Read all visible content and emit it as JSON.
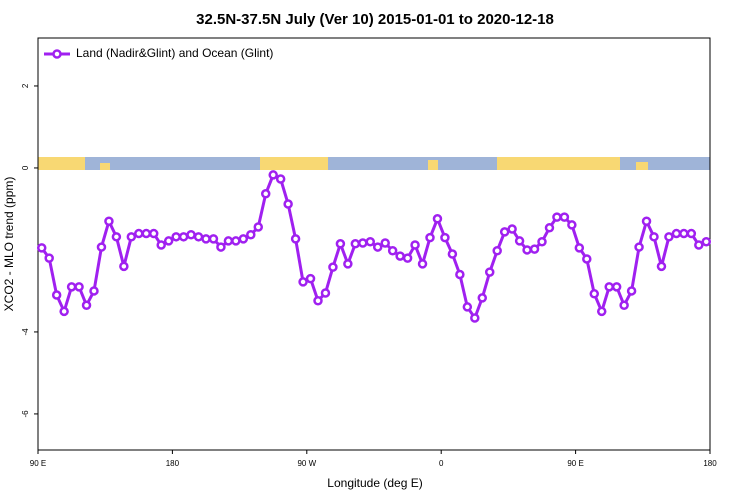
{
  "chart_data": {
    "type": "line",
    "title": "32.5N-37.5N July (Ver 10)   2015-01-01 to 2020-12-18",
    "x_label": "Longitude (deg E)",
    "y_label": "XCO2 - MLO trend (ppm)",
    "legend_position": "top-left",
    "x": [
      92.5,
      97.5,
      102.5,
      107.5,
      112.5,
      117.5,
      122.5,
      127.5,
      132.5,
      137.5,
      142.5,
      147.5,
      152.5,
      157.5,
      162.5,
      167.5,
      172.5,
      177.5,
      182.5,
      187.5,
      192.5,
      197.5,
      202.5,
      207.5,
      212.5,
      217.5,
      222.5,
      227.5,
      232.5,
      237.5,
      242.5,
      247.5,
      252.5,
      257.5,
      262.5,
      267.5,
      272.5,
      277.5,
      282.5,
      287.5,
      292.5,
      297.5,
      302.5,
      307.5,
      312.5,
      317.5,
      322.5,
      327.5,
      332.5,
      337.5,
      342.5,
      347.5,
      352.5,
      357.5,
      362.5,
      367.5,
      372.5,
      377.5,
      382.5,
      387.5,
      392.5,
      397.5,
      402.5,
      407.5,
      412.5,
      417.5,
      422.5,
      427.5,
      432.5,
      437.5,
      442.5,
      447.5,
      452.5,
      457.5,
      462.5,
      467.5,
      472.5,
      477.5,
      482.5,
      487.5,
      492.5,
      497.5,
      502.5,
      507.5,
      512.5,
      517.5,
      522.5,
      527.5,
      532.5,
      537.5
    ],
    "series": [
      {
        "name": "Land (Nadir&Glint) and Ocean (Glint)",
        "color": "#a020f0",
        "values": [
          -1.95,
          -2.2,
          -3.1,
          -3.5,
          -2.9,
          -2.9,
          -3.35,
          -3.0,
          -1.93,
          -1.3,
          -1.68,
          -2.4,
          -1.68,
          -1.6,
          -1.6,
          -1.6,
          -1.88,
          -1.78,
          -1.68,
          -1.68,
          -1.63,
          -1.68,
          -1.73,
          -1.73,
          -1.93,
          -1.78,
          -1.78,
          -1.73,
          -1.63,
          -1.44,
          -0.63,
          -0.17,
          -0.27,
          -0.88,
          -1.73,
          -2.78,
          -2.7,
          -3.24,
          -3.05,
          -2.42,
          -1.85,
          -2.34,
          -1.85,
          -1.83,
          -1.8,
          -1.93,
          -1.83,
          -2.02,
          -2.15,
          -2.2,
          -1.88,
          -2.34,
          -1.7,
          -1.24,
          -1.7,
          -2.1,
          -2.6,
          -3.39,
          -3.66,
          -3.17,
          -2.54,
          -2.02,
          -1.56,
          -1.49,
          -1.78,
          -2.0,
          -1.98,
          -1.8,
          -1.46,
          -1.2,
          -1.2,
          -1.39,
          -1.95,
          -2.22,
          -3.07,
          -3.5,
          -2.9,
          -2.9,
          -3.35,
          -3.0,
          -1.93,
          -1.3,
          -1.68,
          -2.4,
          -1.68,
          -1.6,
          -1.6,
          -1.6,
          -1.88,
          -1.8
        ]
      }
    ],
    "xlim": [
      90,
      540
    ],
    "xticks": [
      {
        "value": 90,
        "label": "90 E"
      },
      180,
      {
        "value": 270,
        "label": "90 W"
      },
      {
        "value": 360,
        "label": "0"
      },
      {
        "value": 450,
        "label": "90 E"
      },
      {
        "value": 540,
        "label": "180"
      }
    ],
    "ylim": [
      -6.88,
      3.17
    ],
    "yticks": [
      -6,
      -4,
      0,
      2
    ]
  }
}
